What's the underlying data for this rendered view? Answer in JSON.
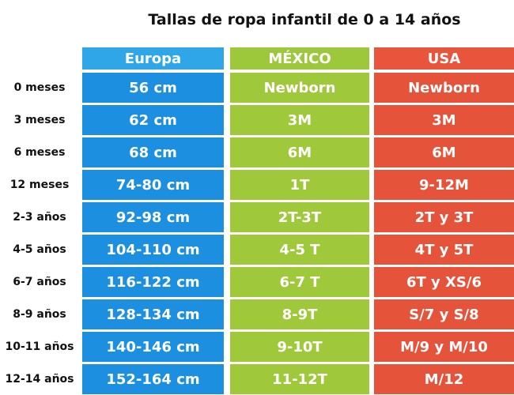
{
  "header": {
    "title": "Tallas de ropa infantil de 0 a 14 años"
  },
  "columns": [
    "Europa",
    "MÉXICO",
    "USA"
  ],
  "rows": [
    {
      "label": "0 meses",
      "cells": [
        "56 cm",
        "Newborn",
        "Newborn"
      ]
    },
    {
      "label": "3 meses",
      "cells": [
        "62 cm",
        "3M",
        "3M"
      ]
    },
    {
      "label": "6 meses",
      "cells": [
        "68 cm",
        "6M",
        "6M"
      ]
    },
    {
      "label": "12 meses",
      "cells": [
        "74-80 cm",
        "1T",
        "9-12M"
      ]
    },
    {
      "label": "2-3 años",
      "cells": [
        "92-98 cm",
        "2T-3T",
        "2T y 3T"
      ]
    },
    {
      "label": "4-5 años",
      "cells": [
        "104-110 cm",
        "4-5 T",
        "4T y 5T"
      ]
    },
    {
      "label": "6-7 años",
      "cells": [
        "116-122 cm",
        "6-7 T",
        "6T y XS/6"
      ]
    },
    {
      "label": "8-9 años",
      "cells": [
        "128-134 cm",
        "8-9T",
        "S/7 y S/8"
      ]
    },
    {
      "label": "10-11 años",
      "cells": [
        "140-146 cm",
        "9-10T",
        "M/9 y M/10"
      ]
    },
    {
      "label": "12-14 años",
      "cells": [
        "152-164 cm",
        "11-12T",
        "M/12"
      ]
    }
  ]
}
